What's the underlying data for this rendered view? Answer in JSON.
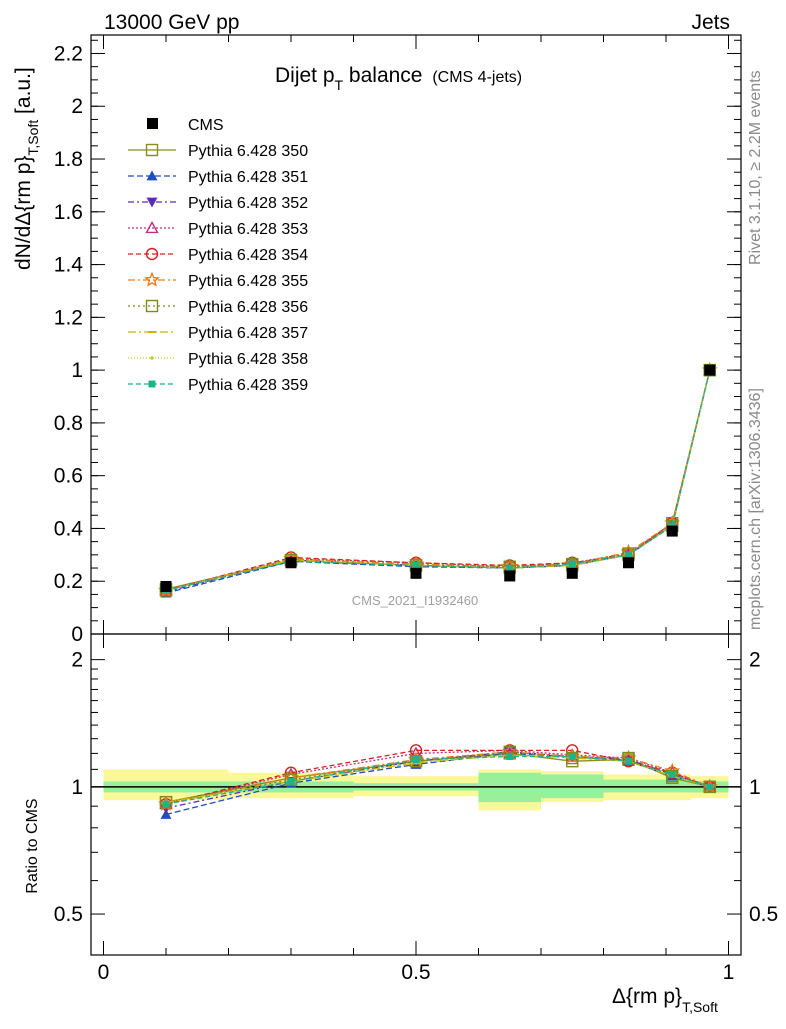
{
  "header": {
    "left": "13000 GeV pp",
    "right": "Jets"
  },
  "side_labels": {
    "rivet": "Rivet 3.1.10, ≥ 2.2M events",
    "mcplots": "mcplots.cern.ch [arXiv:1306.3436]"
  },
  "watermark": "CMS_2021_I1932460",
  "chart_data": [
    {
      "type": "line",
      "panel": "main",
      "title_main": "Dijet p",
      "title_sub": "T",
      "title_rest": " balance",
      "title_tag": "(CMS 4-jets)",
      "ylabel_main": "dN/dΔ{rm p}",
      "ylabel_sub": "T,Soft",
      "ylabel_unit": " [a.u.]",
      "ylim": [
        0,
        2.27
      ],
      "yticks": [
        "0",
        "0.2",
        "0.4",
        "0.6",
        "0.8",
        "1",
        "1.2",
        "1.4",
        "1.6",
        "1.8",
        "2",
        "2.2"
      ],
      "x": [
        0.1,
        0.3,
        0.5,
        0.65,
        0.75,
        0.84,
        0.91,
        0.97
      ],
      "data": {
        "name": "CMS",
        "values": [
          0.18,
          0.27,
          0.23,
          0.22,
          0.23,
          0.27,
          0.39,
          1.0
        ]
      },
      "series": [
        {
          "name": "Pythia 6.428 350",
          "color": "#8b8b1e",
          "dash": "",
          "marker": "square-open",
          "values": [
            0.17,
            0.28,
            0.26,
            0.25,
            0.26,
            0.3,
            0.42,
            1.0
          ]
        },
        {
          "name": "Pythia 6.428 351",
          "color": "#1f4fbf",
          "dash": "6,3",
          "marker": "triangle-up",
          "values": [
            0.155,
            0.275,
            0.255,
            0.25,
            0.26,
            0.3,
            0.41,
            1.0
          ]
        },
        {
          "name": "Pythia 6.428 352",
          "color": "#5a2bbd",
          "dash": "6,3,2,3",
          "marker": "triangle-down",
          "values": [
            0.16,
            0.28,
            0.26,
            0.25,
            0.26,
            0.3,
            0.41,
            1.0
          ]
        },
        {
          "name": "Pythia 6.428 353",
          "color": "#c0307a",
          "dash": "2,2",
          "marker": "triangle-open",
          "values": [
            0.165,
            0.285,
            0.27,
            0.255,
            0.27,
            0.305,
            0.42,
            1.0
          ]
        },
        {
          "name": "Pythia 6.428 354",
          "color": "#d62020",
          "dash": "5,3",
          "marker": "circle-open",
          "values": [
            0.165,
            0.29,
            0.27,
            0.26,
            0.27,
            0.3,
            0.42,
            1.0
          ]
        },
        {
          "name": "Pythia 6.428 355",
          "color": "#ef7a1a",
          "dash": "7,3,2,3",
          "marker": "star-open",
          "values": [
            0.165,
            0.285,
            0.265,
            0.255,
            0.265,
            0.31,
            0.42,
            1.0
          ]
        },
        {
          "name": "Pythia 6.428 356",
          "color": "#7d8c1a",
          "dash": "2,3",
          "marker": "square-open",
          "values": [
            0.165,
            0.28,
            0.26,
            0.255,
            0.265,
            0.305,
            0.41,
            1.0
          ]
        },
        {
          "name": "Pythia 6.428 357",
          "color": "#d2b000",
          "dash": "8,3,2,3",
          "marker": "dash",
          "values": [
            0.165,
            0.28,
            0.26,
            0.25,
            0.26,
            0.3,
            0.41,
            1.0
          ]
        },
        {
          "name": "Pythia 6.428 358",
          "color": "#b5d12a",
          "dash": "1,2",
          "marker": "dot",
          "values": [
            0.165,
            0.28,
            0.26,
            0.25,
            0.26,
            0.3,
            0.41,
            1.0
          ]
        },
        {
          "name": "Pythia 6.428 359",
          "color": "#1cb58a",
          "dash": "5,3",
          "marker": "square-filled",
          "values": [
            0.165,
            0.275,
            0.26,
            0.25,
            0.265,
            0.3,
            0.41,
            1.0
          ]
        }
      ]
    },
    {
      "type": "line",
      "panel": "ratio",
      "ylabel": "Ratio to CMS",
      "ylim": [
        0.4,
        2.3
      ],
      "yscale": "log",
      "yticks": [
        "0.5",
        "1",
        "2"
      ],
      "xlabel_main": "Δ{rm p}",
      "xlabel_sub": "T,Soft",
      "xlim": [
        -0.02,
        1.02
      ],
      "xticks": [
        "0",
        "0.5",
        "1"
      ],
      "bands": [
        {
          "x": [
            0.0,
            0.2,
            0.4,
            0.6,
            0.7,
            0.8,
            0.88,
            0.94,
            1.0
          ],
          "inner_lo": [
            0.97,
            0.97,
            0.98,
            0.92,
            0.94,
            0.97,
            0.97,
            0.97
          ],
          "inner_hi": [
            1.03,
            1.03,
            1.02,
            1.08,
            1.07,
            1.04,
            1.04,
            1.03
          ],
          "outer_lo": [
            0.93,
            0.94,
            0.95,
            0.88,
            0.92,
            0.93,
            0.93,
            0.94
          ],
          "outer_hi": [
            1.1,
            1.08,
            1.06,
            1.1,
            1.09,
            1.07,
            1.07,
            1.06
          ]
        }
      ],
      "series": [
        {
          "name": "Pythia 6.428 350",
          "values": [
            0.92,
            1.05,
            1.15,
            1.2,
            1.15,
            1.16,
            1.05,
            1.0
          ]
        },
        {
          "name": "Pythia 6.428 351",
          "values": [
            0.86,
            1.02,
            1.13,
            1.2,
            1.18,
            1.15,
            1.06,
            1.0
          ]
        },
        {
          "name": "Pythia 6.428 352",
          "values": [
            0.89,
            1.03,
            1.15,
            1.21,
            1.18,
            1.16,
            1.07,
            1.0
          ]
        },
        {
          "name": "Pythia 6.428 353",
          "values": [
            0.91,
            1.07,
            1.2,
            1.22,
            1.19,
            1.17,
            1.08,
            1.0
          ]
        },
        {
          "name": "Pythia 6.428 354",
          "values": [
            0.91,
            1.08,
            1.22,
            1.22,
            1.22,
            1.15,
            1.08,
            1.0
          ]
        },
        {
          "name": "Pythia 6.428 355",
          "values": [
            0.91,
            1.05,
            1.16,
            1.21,
            1.18,
            1.17,
            1.09,
            1.0
          ]
        },
        {
          "name": "Pythia 6.428 356",
          "values": [
            0.92,
            1.04,
            1.15,
            1.21,
            1.17,
            1.17,
            1.06,
            1.0
          ]
        },
        {
          "name": "Pythia 6.428 357",
          "values": [
            0.92,
            1.03,
            1.14,
            1.19,
            1.17,
            1.15,
            1.06,
            1.0
          ]
        },
        {
          "name": "Pythia 6.428 358",
          "values": [
            0.92,
            1.03,
            1.14,
            1.19,
            1.17,
            1.15,
            1.06,
            1.0
          ]
        },
        {
          "name": "Pythia 6.428 359",
          "values": [
            0.91,
            1.03,
            1.16,
            1.18,
            1.18,
            1.15,
            1.07,
            1.0
          ]
        }
      ]
    }
  ]
}
